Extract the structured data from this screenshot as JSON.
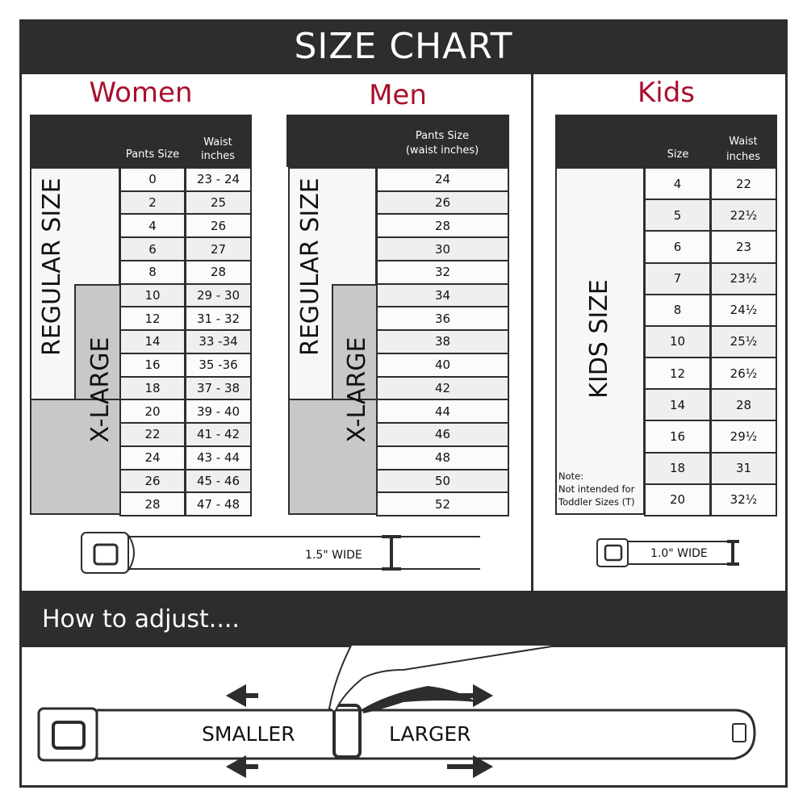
{
  "title": "SIZE CHART",
  "women": {
    "heading": "Women",
    "col1": "Pants Size",
    "col2": "Waist inches",
    "regular_label": "REGULAR SIZE",
    "xl_label": "X-LARGE",
    "rows": [
      [
        "0",
        "23 - 24"
      ],
      [
        "2",
        "25"
      ],
      [
        "4",
        "26"
      ],
      [
        "6",
        "27"
      ],
      [
        "8",
        "28"
      ],
      [
        "10",
        "29 - 30"
      ],
      [
        "12",
        "31 - 32"
      ],
      [
        "14",
        "33 -34"
      ],
      [
        "16",
        "35 -36"
      ],
      [
        "18",
        "37 - 38"
      ],
      [
        "20",
        "39 - 40"
      ],
      [
        "22",
        "41 - 42"
      ],
      [
        "24",
        "43 - 44"
      ],
      [
        "26",
        "45 - 46"
      ],
      [
        "28",
        "47 - 48"
      ]
    ],
    "belt_width": "1.5\" WIDE"
  },
  "men": {
    "heading": "Men",
    "col1": "Pants Size (waist inches)",
    "regular_label": "REGULAR SIZE",
    "xl_label": "X-LARGE",
    "rows": [
      "24",
      "26",
      "28",
      "30",
      "32",
      "34",
      "36",
      "38",
      "40",
      "42",
      "44",
      "46",
      "48",
      "50",
      "52"
    ]
  },
  "kids": {
    "heading": "Kids",
    "col1": "Size",
    "col2": "Waist inches",
    "label": "KIDS SIZE",
    "note_title": "Note:",
    "note_text": "Not intended for Toddler Sizes (T)",
    "rows": [
      [
        "4",
        "22"
      ],
      [
        "5",
        "22½"
      ],
      [
        "6",
        "23"
      ],
      [
        "7",
        "23½"
      ],
      [
        "8",
        "24½"
      ],
      [
        "10",
        "25½"
      ],
      [
        "12",
        "26½"
      ],
      [
        "14",
        "28"
      ],
      [
        "16",
        "29½"
      ],
      [
        "18",
        "31"
      ],
      [
        "20",
        "32½"
      ]
    ],
    "belt_width": "1.0\" WIDE"
  },
  "adjust": {
    "heading": "How to adjust....",
    "smaller": "SMALLER",
    "larger": "LARGER"
  },
  "colors": {
    "accent": "#a8102e",
    "dark": "#2d2d2d",
    "xl_gray": "#c8c8c8"
  }
}
